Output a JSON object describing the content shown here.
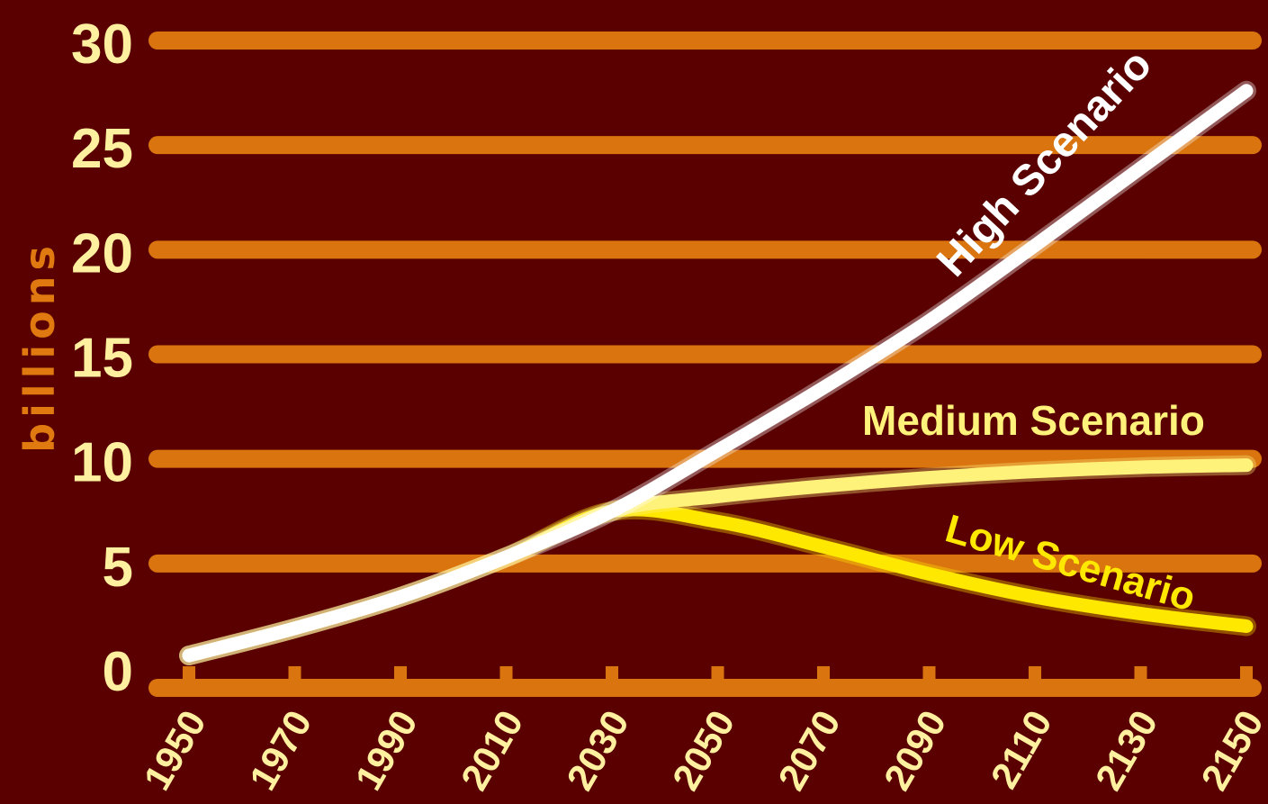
{
  "chart_data": {
    "type": "line",
    "title": "",
    "xlabel": "",
    "ylabel": "billions",
    "ylim": [
      0,
      30
    ],
    "yticks": [
      "0",
      "5",
      "10",
      "15",
      "20",
      "25",
      "30"
    ],
    "x": [
      1950,
      1970,
      1990,
      2010,
      2030,
      2050,
      2070,
      2090,
      2110,
      2130,
      2150
    ],
    "xticks": [
      "1950",
      "1970",
      "1990",
      "2010",
      "2030",
      "2050",
      "2070",
      "2090",
      "2110",
      "2130",
      "2150"
    ],
    "grid": true,
    "series": [
      {
        "name": "High Scenario",
        "color": "#ffffff",
        "values": [
          0.6,
          1.9,
          3.4,
          5.3,
          7.5,
          10.4,
          13.4,
          16.6,
          20.2,
          23.9,
          27.6
        ]
      },
      {
        "name": "Medium Scenario",
        "color": "#fff27a",
        "values": [
          0.6,
          1.9,
          3.4,
          5.3,
          7.5,
          8.2,
          8.7,
          9.1,
          9.4,
          9.6,
          9.7
        ]
      },
      {
        "name": "Low Scenario",
        "color": "#ffe800",
        "values": [
          0.6,
          1.9,
          3.4,
          5.3,
          7.5,
          7.0,
          5.8,
          4.5,
          3.4,
          2.6,
          2.0
        ]
      }
    ]
  },
  "colors": {
    "background": "#5a0000",
    "gridline": "#d9740f",
    "tick_text": "#fff0a0",
    "ylabel_text": "#e07a10"
  }
}
